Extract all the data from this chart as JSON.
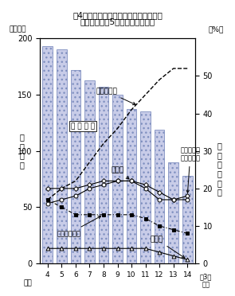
{
  "title_line1": "図4　短期大学（本科）卒業者の就職先",
  "title_line2": "産業別（主な5業種）構成の状況",
  "years": [
    4,
    5,
    6,
    7,
    8,
    9,
    10,
    11,
    12,
    13,
    14
  ],
  "bar_values": [
    193,
    190,
    172,
    163,
    157,
    150,
    137,
    135,
    119,
    90,
    78
  ],
  "service_pct": [
    17,
    20,
    22,
    27,
    32,
    36,
    41,
    45,
    49,
    52,
    52
  ],
  "wholesale_pct": [
    20,
    20,
    20,
    21,
    22,
    22,
    22,
    21,
    19,
    17,
    18
  ],
  "manufacturing_pct": [
    16,
    17,
    18,
    20,
    21,
    22,
    22,
    20,
    17,
    17,
    17
  ],
  "finance_pct": [
    17,
    15,
    13,
    13,
    13,
    13,
    13,
    12,
    10,
    9,
    8
  ],
  "construction_pct": [
    4,
    4,
    4,
    4,
    4,
    4,
    4,
    4,
    3,
    2,
    1
  ],
  "bar_color": "#c8cce8",
  "bar_edge_color": "#8090c0",
  "ylim_left": [
    0,
    200
  ],
  "ylim_right": [
    0,
    60
  ],
  "yticks_left": [
    0,
    50,
    100,
    150,
    200
  ],
  "yticks_right": [
    0,
    10,
    20,
    30,
    40,
    50
  ]
}
